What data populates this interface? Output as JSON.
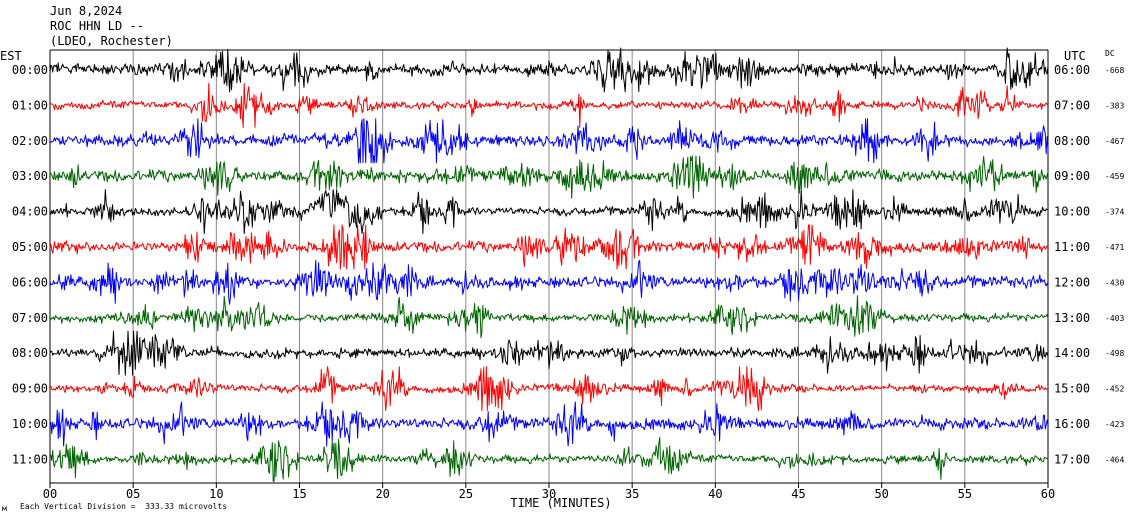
{
  "header": {
    "date": "Jun 8,2024",
    "station": "ROC HHN LD --",
    "network": "(LDEO, Rochester)"
  },
  "left_axis_label": "EST",
  "right_axis_label": "UTC",
  "dc_label": "DC",
  "footer": {
    "scale_note": "Each Vertical Division =  333.33 microvolts",
    "logo_glyph": "м"
  },
  "colors": {
    "black": "#000000",
    "red": "#ff0000",
    "blue": "#0000ff",
    "green": "#006400",
    "grid": "#888888"
  },
  "chart_data": {
    "type": "line",
    "title": "Jun 8,2024 ROC HHN LD -- (LDEO, Rochester)",
    "xlabel": "TIME (MINUTES)",
    "xlim": [
      0,
      60
    ],
    "x_ticks": [
      "00",
      "05",
      "10",
      "15",
      "20",
      "25",
      "30",
      "35",
      "40",
      "45",
      "50",
      "55",
      "60"
    ],
    "grid": "vertical lines every 5 minutes",
    "series_color_cycle": [
      "black",
      "red",
      "blue",
      "green"
    ],
    "rows": [
      {
        "est": "00:00",
        "utc": "06:00",
        "dc": "-668",
        "color": "black"
      },
      {
        "est": "01:00",
        "utc": "07:00",
        "dc": "-383",
        "color": "red"
      },
      {
        "est": "02:00",
        "utc": "08:00",
        "dc": "-467",
        "color": "blue"
      },
      {
        "est": "03:00",
        "utc": "09:00",
        "dc": "-459",
        "color": "green"
      },
      {
        "est": "04:00",
        "utc": "10:00",
        "dc": "-374",
        "color": "black"
      },
      {
        "est": "05:00",
        "utc": "11:00",
        "dc": "-471",
        "color": "red"
      },
      {
        "est": "06:00",
        "utc": "12:00",
        "dc": "-430",
        "color": "blue"
      },
      {
        "est": "07:00",
        "utc": "13:00",
        "dc": "-403",
        "color": "green"
      },
      {
        "est": "08:00",
        "utc": "14:00",
        "dc": "-498",
        "color": "black"
      },
      {
        "est": "09:00",
        "utc": "15:00",
        "dc": "-452",
        "color": "red"
      },
      {
        "est": "10:00",
        "utc": "16:00",
        "dc": "-423",
        "color": "blue"
      },
      {
        "est": "11:00",
        "utc": "17:00",
        "dc": "-464",
        "color": "green"
      }
    ],
    "scale_microvolts_per_division": 333.33,
    "notable_event": {
      "row_est": "04:00",
      "minute_range": [
        15,
        20
      ]
    }
  }
}
